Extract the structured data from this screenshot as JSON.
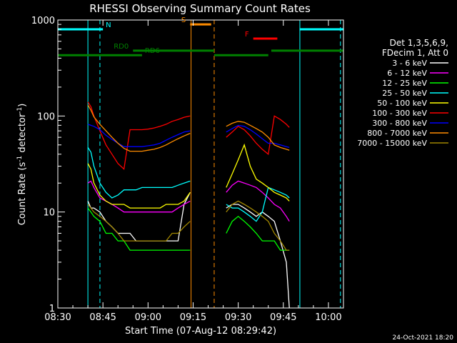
{
  "chart_data": {
    "type": "line",
    "title": "RHESSI Observing Summary Count Rates",
    "xlabel": "Start Time (07-Aug-12 08:29:42)",
    "ylabel_main": "Count Rate (s",
    "ylabel_sup1": "-1",
    "ylabel_mid": " detector",
    "ylabel_sup2": "-1",
    "ylabel_end": ")",
    "yscale": "log",
    "ylim": [
      1,
      1000
    ],
    "xlim_minutes": [
      0,
      95
    ],
    "x_ticks": [
      {
        "label": "08:30",
        "min": 0
      },
      {
        "label": "08:45",
        "min": 15
      },
      {
        "label": "09:00",
        "min": 30
      },
      {
        "label": "09:15",
        "min": 45
      },
      {
        "label": "09:30",
        "min": 60
      },
      {
        "label": "09:45",
        "min": 75
      },
      {
        "label": "10:00",
        "min": 90
      }
    ],
    "y_ticks": [
      {
        "label": "1",
        "value": 1
      },
      {
        "label": "10",
        "value": 10
      },
      {
        "label": "100",
        "value": 100
      },
      {
        "label": "1000",
        "value": 1000
      }
    ],
    "legend_header": [
      "Det 1,3,5,6,9,",
      "FDecim 1, Att 0"
    ],
    "series": [
      {
        "name": "3 - 6 keV",
        "color": "#ffffff",
        "t": [
          10,
          11,
          12,
          14,
          16,
          18,
          20,
          22,
          24,
          26,
          28,
          30,
          32,
          34,
          36,
          38,
          40,
          42,
          44,
          46,
          48,
          50,
          52,
          54,
          56,
          58,
          60,
          62,
          64,
          66,
          68,
          70,
          72,
          74,
          76,
          77
        ],
        "v": [
          13,
          11,
          11,
          10,
          8,
          7,
          6,
          6,
          6,
          5,
          5,
          5,
          5,
          5,
          5,
          5,
          5,
          12,
          16,
          null,
          null,
          null,
          null,
          null,
          11,
          12,
          12,
          11,
          10,
          9,
          10,
          9,
          8,
          5,
          3,
          1
        ]
      },
      {
        "name": "6 - 12 keV",
        "color": "#ff00ff",
        "t": [
          10,
          11,
          12,
          14,
          16,
          18,
          20,
          22,
          24,
          26,
          28,
          30,
          32,
          34,
          36,
          38,
          40,
          42,
          44,
          46,
          48,
          50,
          52,
          54,
          56,
          58,
          60,
          62,
          64,
          66,
          68,
          70,
          72,
          74,
          76,
          77
        ],
        "v": [
          20,
          21,
          18,
          14,
          13,
          12,
          11,
          10,
          10,
          10,
          10,
          10,
          10,
          10,
          10,
          10,
          11,
          12,
          13,
          null,
          null,
          null,
          null,
          null,
          16,
          19,
          21,
          20,
          19,
          18,
          16,
          14,
          12,
          11,
          9,
          8
        ]
      },
      {
        "name": "12 - 25 keV",
        "color": "#00ff00",
        "t": [
          10,
          11,
          12,
          14,
          16,
          18,
          20,
          22,
          24,
          26,
          28,
          30,
          32,
          34,
          36,
          38,
          40,
          42,
          44,
          46,
          48,
          50,
          52,
          54,
          56,
          58,
          60,
          62,
          64,
          66,
          68,
          70,
          72,
          74,
          76,
          77
        ],
        "v": [
          11,
          10,
          9,
          8,
          6,
          6,
          5,
          5,
          4,
          4,
          4,
          4,
          4,
          4,
          4,
          4,
          4,
          4,
          4,
          null,
          null,
          null,
          null,
          null,
          6,
          8,
          9,
          8,
          7,
          6,
          5,
          5,
          5,
          4,
          4,
          4
        ]
      },
      {
        "name": "25 - 50 keV",
        "color": "#00ffff",
        "t": [
          10,
          11,
          12,
          14,
          16,
          18,
          20,
          22,
          24,
          26,
          28,
          30,
          32,
          34,
          36,
          38,
          40,
          42,
          44,
          46,
          48,
          50,
          52,
          54,
          56,
          58,
          60,
          62,
          64,
          66,
          68,
          70,
          72,
          74,
          76,
          77
        ],
        "v": [
          47,
          42,
          30,
          20,
          16,
          14,
          15,
          17,
          17,
          17,
          18,
          18,
          18,
          18,
          18,
          18,
          19,
          20,
          21,
          null,
          null,
          null,
          null,
          null,
          12,
          11,
          11,
          10,
          9,
          8,
          10,
          18,
          17,
          16,
          15,
          14
        ]
      },
      {
        "name": "50 - 100 keV",
        "color": "#ffff00",
        "t": [
          10,
          11,
          12,
          14,
          16,
          18,
          20,
          22,
          24,
          26,
          28,
          30,
          32,
          34,
          36,
          38,
          40,
          42,
          44,
          46,
          48,
          50,
          52,
          54,
          56,
          58,
          60,
          62,
          64,
          66,
          68,
          70,
          72,
          74,
          76,
          77
        ],
        "v": [
          32,
          28,
          20,
          15,
          13,
          12,
          12,
          12,
          11,
          11,
          11,
          11,
          11,
          11,
          12,
          12,
          12,
          13,
          16,
          null,
          null,
          null,
          null,
          null,
          18,
          25,
          35,
          50,
          30,
          22,
          20,
          18,
          16,
          15,
          14,
          13
        ]
      },
      {
        "name": "100 - 300 keV",
        "color": "#ff0000",
        "t": [
          10,
          11,
          12,
          14,
          16,
          18,
          20,
          22,
          24,
          26,
          28,
          30,
          32,
          34,
          36,
          38,
          40,
          42,
          44,
          46,
          48,
          50,
          52,
          54,
          56,
          58,
          60,
          62,
          64,
          66,
          68,
          70,
          72,
          74,
          76,
          77
        ],
        "v": [
          140,
          125,
          100,
          70,
          50,
          40,
          32,
          28,
          72,
          72,
          72,
          73,
          75,
          78,
          82,
          88,
          92,
          97,
          100,
          null,
          null,
          null,
          null,
          null,
          60,
          68,
          78,
          72,
          62,
          52,
          45,
          40,
          100,
          92,
          82,
          76
        ]
      },
      {
        "name": "300 - 800 keV",
        "color": "#0000ff",
        "t": [
          10,
          11,
          12,
          14,
          16,
          18,
          20,
          22,
          24,
          26,
          28,
          30,
          32,
          34,
          36,
          38,
          40,
          42,
          44,
          46,
          48,
          50,
          52,
          54,
          56,
          58,
          60,
          62,
          64,
          66,
          68,
          70,
          72,
          74,
          76,
          77
        ],
        "v": [
          82,
          80,
          78,
          72,
          63,
          57,
          52,
          48,
          48,
          48,
          48,
          49,
          50,
          52,
          56,
          60,
          64,
          68,
          70,
          null,
          null,
          null,
          null,
          null,
          68,
          74,
          80,
          78,
          72,
          65,
          58,
          52,
          52,
          50,
          48,
          47
        ]
      },
      {
        "name": "800 - 7000 keV",
        "color": "#ff8c00",
        "t": [
          10,
          11,
          12,
          14,
          16,
          18,
          20,
          22,
          24,
          26,
          28,
          30,
          32,
          34,
          36,
          38,
          40,
          42,
          44,
          46,
          48,
          50,
          52,
          54,
          56,
          58,
          60,
          62,
          64,
          66,
          68,
          70,
          72,
          74,
          76,
          77
        ],
        "v": [
          130,
          115,
          98,
          82,
          70,
          60,
          52,
          46,
          43,
          43,
          43,
          44,
          45,
          47,
          50,
          54,
          58,
          62,
          66,
          null,
          null,
          null,
          null,
          null,
          78,
          84,
          88,
          86,
          80,
          74,
          68,
          60,
          50,
          47,
          45,
          44
        ]
      },
      {
        "name": "7000 - 15000 keV",
        "color": "#a08600",
        "t": [
          10,
          11,
          12,
          14,
          16,
          18,
          20,
          22,
          24,
          26,
          28,
          30,
          32,
          34,
          36,
          38,
          40,
          42,
          44,
          46,
          48,
          50,
          52,
          54,
          56,
          58,
          60,
          62,
          64,
          66,
          68,
          70,
          72,
          74,
          76,
          77
        ],
        "v": [
          12,
          11,
          10,
          9,
          8,
          7,
          6,
          5,
          5,
          5,
          5,
          5,
          5,
          5,
          5,
          6,
          6,
          7,
          8,
          null,
          null,
          null,
          null,
          null,
          10,
          12,
          13,
          12,
          11,
          10,
          9,
          8,
          6,
          5,
          4,
          4
        ]
      }
    ],
    "vertical_markers": [
      {
        "min": 0,
        "color": "#00ffff",
        "dashed": false
      },
      {
        "min": 10,
        "color": "#00ffff",
        "dashed": false
      },
      {
        "min": 14,
        "color": "#00ffff",
        "dashed": true
      },
      {
        "min": 44.3,
        "color": "#ff8c00",
        "dashed": false
      },
      {
        "min": 52,
        "color": "#ff8c00",
        "dashed": true
      },
      {
        "min": 80.5,
        "color": "#00ffff",
        "dashed": false
      },
      {
        "min": 94,
        "color": "#00ffff",
        "dashed": true
      }
    ],
    "flag_bars": [
      {
        "label": "N",
        "color": "#00ffff",
        "y": 800,
        "segments": [
          [
            0,
            15
          ],
          [
            80.5,
            95
          ]
        ]
      },
      {
        "label": "S",
        "color": "#ff8c00",
        "y": 900,
        "segments": [
          [
            44,
            51
          ]
        ]
      },
      {
        "label": "F",
        "color": "#ff0000",
        "y": 640,
        "segments": [
          [
            65,
            73
          ]
        ]
      },
      {
        "label": "RD0",
        "color": "#008000",
        "y": 480,
        "segments": [
          [
            25,
            52
          ],
          [
            71,
            95
          ]
        ]
      },
      {
        "label": "RD6",
        "color": "#008000",
        "y": 430,
        "segments": [
          [
            0,
            28
          ],
          [
            52,
            70
          ]
        ]
      }
    ],
    "footer_date": "24-Oct-2021 18:20"
  }
}
